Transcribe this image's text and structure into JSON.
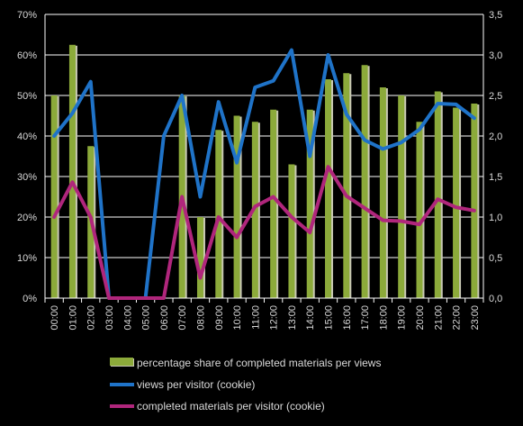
{
  "chart_data": {
    "type": "bar",
    "categories": [
      "00:00",
      "01:00",
      "02:00",
      "03:00",
      "04:00",
      "05:00",
      "06:00",
      "07:00",
      "08:00",
      "09:00",
      "10:00",
      "11:00",
      "12:00",
      "13:00",
      "14:00",
      "15:00",
      "16:00",
      "17:00",
      "18:00",
      "19:00",
      "20:00",
      "21:00",
      "22:00",
      "23:00"
    ],
    "y_left": {
      "ylim": [
        0,
        70
      ],
      "ticks": [
        "0%",
        "10%",
        "20%",
        "30%",
        "40%",
        "50%",
        "60%",
        "70%"
      ]
    },
    "y_right": {
      "ylim": [
        0,
        3.5
      ],
      "ticks": [
        "0,0",
        "0,5",
        "1,0",
        "1,5",
        "2,0",
        "2,5",
        "3,0",
        "3,5"
      ]
    },
    "series": [
      {
        "name": "percentage share of completed materials per views",
        "type": "bar",
        "axis": "left",
        "color": "#8caa3a",
        "values": [
          50,
          62.5,
          37.5,
          0,
          0,
          0,
          0,
          50,
          20,
          41.5,
          45,
          43.5,
          46.5,
          33,
          46.5,
          54,
          55.5,
          57.5,
          52,
          50,
          43.5,
          51,
          47,
          48
        ]
      },
      {
        "name": "views per visitor (cookie)",
        "type": "line",
        "axis": "right",
        "color": "#1f73c8",
        "values": [
          2.0,
          2.28,
          2.67,
          0,
          0,
          0,
          2.0,
          2.5,
          1.25,
          2.42,
          1.67,
          2.6,
          2.68,
          3.06,
          1.75,
          3.0,
          2.27,
          1.95,
          1.84,
          1.92,
          2.08,
          2.4,
          2.39,
          2.22
        ]
      },
      {
        "name": "completed materials per visitor (cookie)",
        "type": "line",
        "axis": "right",
        "color": "#b0267c",
        "values": [
          1.0,
          1.43,
          1.0,
          0,
          0,
          0,
          0,
          1.25,
          0.25,
          1.0,
          0.75,
          1.13,
          1.25,
          1.0,
          0.81,
          1.62,
          1.26,
          1.11,
          0.96,
          0.95,
          0.91,
          1.22,
          1.12,
          1.08
        ]
      }
    ],
    "grid": true,
    "legend_position": "bottom"
  }
}
